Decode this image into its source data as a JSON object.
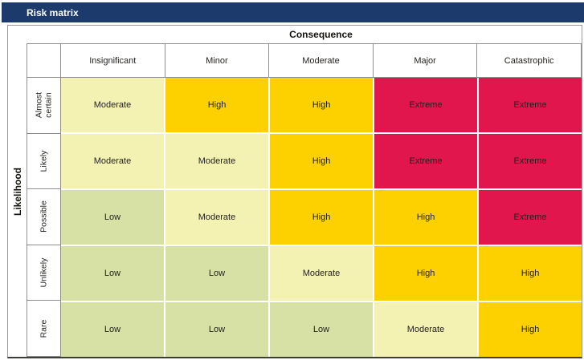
{
  "window": {
    "title": "Risk matrix"
  },
  "colors": {
    "title_bar_bg": "#1d3a6d",
    "title_text": "#ffffff",
    "border_gray": "#8f8f8f",
    "bottom_border": "#3e3e36",
    "cell_text": "#211e1c"
  },
  "chart_data": {
    "type": "heatmap",
    "title": "Risk matrix",
    "xlabel": "Consequence",
    "ylabel": "Likelihood",
    "x_categories": [
      "Insignificant",
      "Minor",
      "Moderate",
      "Major",
      "Catastrophic"
    ],
    "y_categories": [
      "Almost certain",
      "Likely",
      "Possible",
      "Unlikely",
      "Rare"
    ],
    "values": [
      [
        "Moderate",
        "High",
        "High",
        "Extreme",
        "Extreme"
      ],
      [
        "Moderate",
        "Moderate",
        "High",
        "Extreme",
        "Extreme"
      ],
      [
        "Low",
        "Moderate",
        "High",
        "High",
        "Extreme"
      ],
      [
        "Low",
        "Low",
        "Moderate",
        "High",
        "High"
      ],
      [
        "Low",
        "Low",
        "Low",
        "Moderate",
        "High"
      ]
    ],
    "level_colors": {
      "Low": "#d7e1a6",
      "Moderate": "#f4f2b3",
      "High": "#fdd000",
      "Extreme": "#e0164d"
    },
    "legend_position": "none",
    "grid": "white 2px separators between cells"
  }
}
